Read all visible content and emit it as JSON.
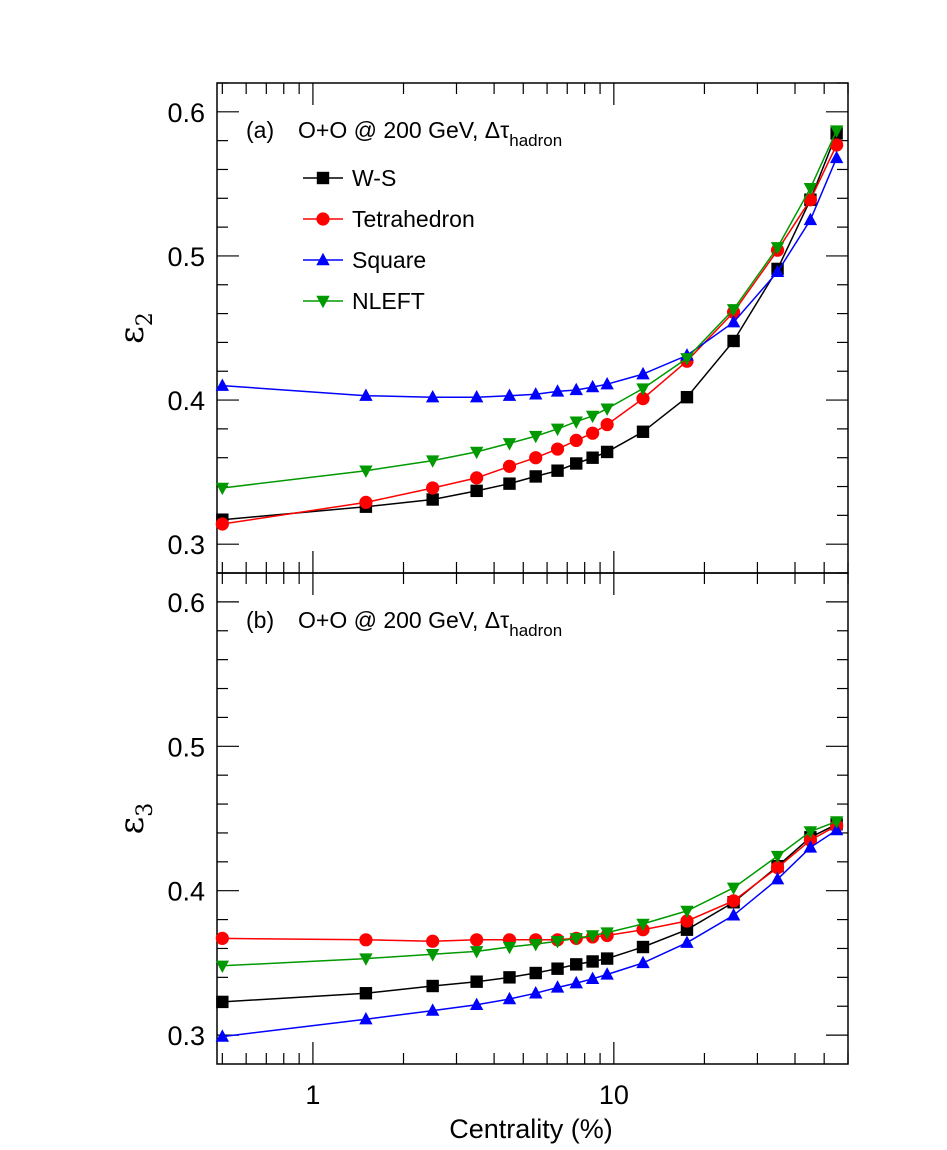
{
  "chart_data": [
    {
      "type": "line",
      "panel_label": "(a)",
      "title_main": "O+O @ 200 GeV, Δτ",
      "title_sub": "hadron",
      "ylabel_main": "ε",
      "ylabel_sub": "2",
      "xlabel": "",
      "xscale": "log",
      "xlim": [
        0.48,
        60
      ],
      "ylim": [
        0.28,
        0.62
      ],
      "yticks": [
        0.3,
        0.4,
        0.5,
        0.6
      ],
      "ytick_labels": [
        "0.3",
        "0.4",
        "0.5",
        "0.6"
      ],
      "show_xtick_labels": false,
      "legend": true,
      "legend_position": "top-left",
      "x": [
        0.5,
        1.5,
        2.5,
        3.5,
        4.5,
        5.5,
        6.5,
        7.5,
        8.5,
        9.5,
        12.5,
        17.5,
        25,
        35,
        45,
        55
      ],
      "series": [
        {
          "name": "W-S",
          "color": "#000000",
          "marker": "square",
          "values": [
            0.317,
            0.326,
            0.331,
            0.337,
            0.342,
            0.347,
            0.351,
            0.356,
            0.36,
            0.364,
            0.378,
            0.402,
            0.441,
            0.491,
            0.539,
            0.585
          ]
        },
        {
          "name": "Tetrahedron",
          "color": "#ff0000",
          "marker": "circle",
          "values": [
            0.314,
            0.329,
            0.339,
            0.346,
            0.354,
            0.36,
            0.366,
            0.372,
            0.377,
            0.383,
            0.401,
            0.427,
            0.461,
            0.504,
            0.539,
            0.577
          ]
        },
        {
          "name": "Square",
          "color": "#0000ff",
          "marker": "triangle-up",
          "values": [
            0.41,
            0.403,
            0.402,
            0.402,
            0.403,
            0.404,
            0.406,
            0.407,
            0.409,
            0.411,
            0.418,
            0.431,
            0.454,
            0.489,
            0.525,
            0.568
          ]
        },
        {
          "name": "NLEFT",
          "color": "#009900",
          "marker": "triangle-down",
          "values": [
            0.339,
            0.351,
            0.358,
            0.364,
            0.37,
            0.375,
            0.38,
            0.385,
            0.389,
            0.394,
            0.408,
            0.429,
            0.463,
            0.506,
            0.547,
            0.587
          ]
        }
      ]
    },
    {
      "type": "line",
      "panel_label": "(b)",
      "title_main": "O+O @ 200 GeV, Δτ",
      "title_sub": "hadron",
      "ylabel_main": "ε",
      "ylabel_sub": "3",
      "xlabel": "Centrality (%)",
      "xscale": "log",
      "xlim": [
        0.48,
        60
      ],
      "xticks": [
        1,
        10
      ],
      "xtick_labels": [
        "1",
        "10"
      ],
      "ylim": [
        0.28,
        0.62
      ],
      "yticks": [
        0.3,
        0.4,
        0.5,
        0.6
      ],
      "ytick_labels": [
        "0.3",
        "0.4",
        "0.5",
        "0.6"
      ],
      "show_xtick_labels": true,
      "legend": false,
      "x": [
        0.5,
        1.5,
        2.5,
        3.5,
        4.5,
        5.5,
        6.5,
        7.5,
        8.5,
        9.5,
        12.5,
        17.5,
        25,
        35,
        45,
        55
      ],
      "series": [
        {
          "name": "W-S",
          "color": "#000000",
          "marker": "square",
          "values": [
            0.323,
            0.329,
            0.334,
            0.337,
            0.34,
            0.343,
            0.346,
            0.349,
            0.351,
            0.353,
            0.361,
            0.373,
            0.392,
            0.417,
            0.437,
            0.446
          ]
        },
        {
          "name": "Tetrahedron",
          "color": "#ff0000",
          "marker": "circle",
          "values": [
            0.367,
            0.366,
            0.365,
            0.366,
            0.366,
            0.366,
            0.366,
            0.367,
            0.368,
            0.369,
            0.373,
            0.379,
            0.393,
            0.416,
            0.435,
            0.445
          ]
        },
        {
          "name": "Square",
          "color": "#0000ff",
          "marker": "triangle-up",
          "values": [
            0.299,
            0.311,
            0.317,
            0.321,
            0.325,
            0.329,
            0.333,
            0.336,
            0.339,
            0.342,
            0.35,
            0.364,
            0.383,
            0.408,
            0.43,
            0.442
          ]
        },
        {
          "name": "NLEFT",
          "color": "#009900",
          "marker": "triangle-down",
          "values": [
            0.348,
            0.353,
            0.356,
            0.358,
            0.361,
            0.363,
            0.365,
            0.367,
            0.369,
            0.371,
            0.377,
            0.386,
            0.402,
            0.424,
            0.441,
            0.448
          ]
        }
      ]
    }
  ]
}
